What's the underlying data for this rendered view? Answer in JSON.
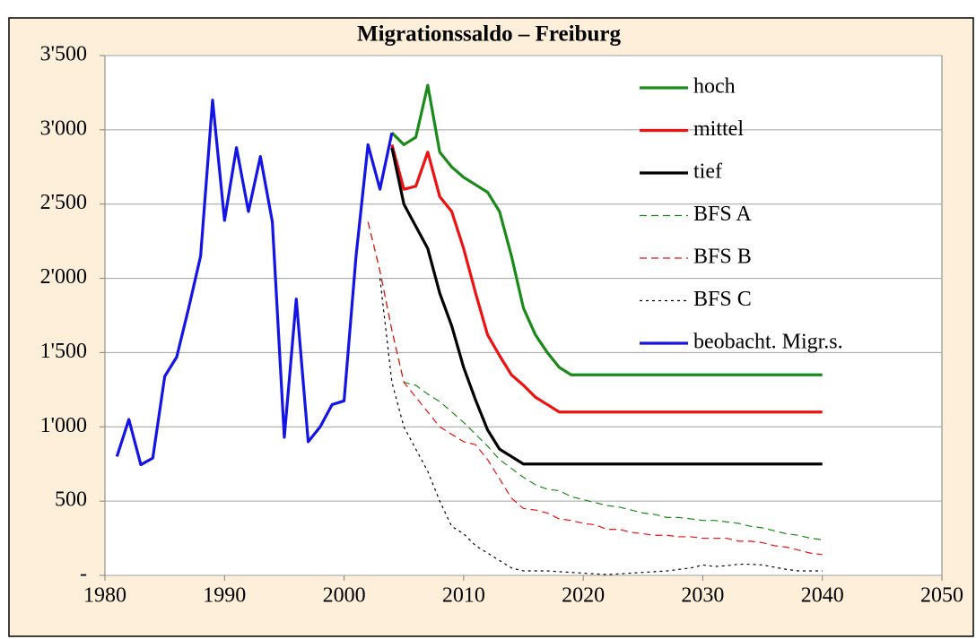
{
  "chart_data": {
    "type": "line",
    "title": "Migrationssaldo – Freiburg",
    "xlim": [
      1980,
      2050
    ],
    "xticks": [
      1980,
      1990,
      2000,
      2010,
      2020,
      2030,
      2040,
      2050
    ],
    "ylim": [
      0,
      3500
    ],
    "yticks": [
      {
        "value": 0,
        "label": "-"
      },
      500,
      {
        "value": 1000,
        "label": "1'000"
      },
      {
        "value": 1500,
        "label": "1'500"
      },
      {
        "value": 2000,
        "label": "2'000"
      },
      {
        "value": 2500,
        "label": "2'500"
      },
      {
        "value": 3000,
        "label": "3'000"
      },
      {
        "value": 3500,
        "label": "3'500"
      }
    ],
    "grid": true,
    "legend": "upper right",
    "series": [
      {
        "name": "hoch",
        "color": "#1a8a1a",
        "dash": "solid",
        "x": [
          2004,
          2005,
          2006,
          2007,
          2008,
          2009,
          2010,
          2011,
          2012,
          2013,
          2014,
          2015,
          2016,
          2017,
          2018,
          2019,
          2020,
          2030,
          2040
        ],
        "values": [
          2980,
          2900,
          2950,
          3300,
          2850,
          2750,
          2680,
          2630,
          2580,
          2450,
          2150,
          1800,
          1620,
          1500,
          1400,
          1350,
          1350,
          1350,
          1350
        ]
      },
      {
        "name": "mittel",
        "color": "#ee1111",
        "dash": "solid",
        "x": [
          2004,
          2005,
          2006,
          2007,
          2008,
          2009,
          2010,
          2011,
          2012,
          2013,
          2014,
          2015,
          2016,
          2017,
          2018,
          2019,
          2030,
          2040
        ],
        "values": [
          2900,
          2600,
          2620,
          2850,
          2550,
          2450,
          2200,
          1900,
          1620,
          1480,
          1350,
          1280,
          1200,
          1150,
          1100,
          1100,
          1100,
          1100
        ]
      },
      {
        "name": "tief",
        "color": "#000000",
        "dash": "solid",
        "x": [
          2004,
          2005,
          2006,
          2007,
          2008,
          2009,
          2010,
          2011,
          2012,
          2013,
          2014,
          2015,
          2030,
          2040
        ],
        "values": [
          2880,
          2500,
          2350,
          2200,
          1900,
          1680,
          1400,
          1180,
          980,
          850,
          800,
          750,
          750,
          750
        ]
      },
      {
        "name": "BFS A",
        "color": "#1a8a1a",
        "dash": "dashed",
        "x": [
          2002,
          2003,
          2004,
          2005,
          2006,
          2007,
          2008,
          2009,
          2010,
          2011,
          2012,
          2013,
          2014,
          2015,
          2016,
          2017,
          2018,
          2019,
          2020,
          2021,
          2022,
          2023,
          2024,
          2025,
          2026,
          2027,
          2028,
          2029,
          2030,
          2031,
          2032,
          2033,
          2034,
          2035,
          2036,
          2037,
          2038,
          2039,
          2040
        ],
        "values": [
          2380,
          2050,
          1650,
          1300,
          1280,
          1220,
          1170,
          1100,
          1030,
          950,
          870,
          780,
          720,
          660,
          610,
          580,
          570,
          530,
          510,
          490,
          470,
          460,
          440,
          420,
          410,
          390,
          390,
          380,
          370,
          370,
          360,
          350,
          330,
          320,
          300,
          280,
          270,
          250,
          240
        ]
      },
      {
        "name": "BFS B",
        "color": "#ee1111",
        "dash": "dashed",
        "x": [
          2002,
          2003,
          2004,
          2005,
          2006,
          2007,
          2008,
          2009,
          2010,
          2011,
          2012,
          2013,
          2014,
          2015,
          2016,
          2017,
          2018,
          2019,
          2020,
          2021,
          2022,
          2023,
          2024,
          2025,
          2026,
          2027,
          2028,
          2029,
          2030,
          2031,
          2032,
          2033,
          2034,
          2035,
          2036,
          2037,
          2038,
          2039,
          2040
        ],
        "values": [
          2380,
          2050,
          1650,
          1300,
          1200,
          1100,
          1000,
          950,
          900,
          880,
          780,
          650,
          520,
          450,
          440,
          420,
          380,
          370,
          350,
          340,
          310,
          310,
          290,
          280,
          270,
          270,
          260,
          260,
          250,
          250,
          250,
          230,
          230,
          220,
          200,
          190,
          170,
          150,
          140
        ]
      },
      {
        "name": "BFS C",
        "color": "#000000",
        "dash": "dotted",
        "x": [
          2003,
          2004,
          2005,
          2006,
          2007,
          2008,
          2009,
          2010,
          2011,
          2012,
          2013,
          2014,
          2015,
          2016,
          2017,
          2018,
          2019,
          2020,
          2021,
          2022,
          2023,
          2024,
          2025,
          2026,
          2027,
          2028,
          2029,
          2030,
          2031,
          2032,
          2033,
          2034,
          2035,
          2036,
          2037,
          2038,
          2039,
          2040
        ],
        "values": [
          2000,
          1300,
          1000,
          850,
          700,
          500,
          330,
          280,
          200,
          150,
          100,
          50,
          30,
          30,
          30,
          25,
          20,
          15,
          10,
          5,
          10,
          15,
          20,
          25,
          30,
          40,
          50,
          70,
          60,
          65,
          75,
          75,
          70,
          55,
          40,
          30,
          30,
          30
        ]
      },
      {
        "name": "beobacht. Migr.s.",
        "color": "#1414e6",
        "dash": "solid",
        "x": [
          1981,
          1982,
          1983,
          1984,
          1985,
          1986,
          1987,
          1988,
          1989,
          1990,
          1991,
          1992,
          1993,
          1994,
          1995,
          1996,
          1997,
          1998,
          1999,
          2000,
          2001,
          2002,
          2003,
          2004
        ],
        "values": [
          800,
          1050,
          745,
          790,
          1340,
          1470,
          1800,
          2150,
          3200,
          2390,
          2880,
          2450,
          2820,
          2380,
          930,
          1860,
          900,
          1000,
          1150,
          1175,
          2150,
          2900,
          2600,
          2980
        ]
      }
    ]
  }
}
